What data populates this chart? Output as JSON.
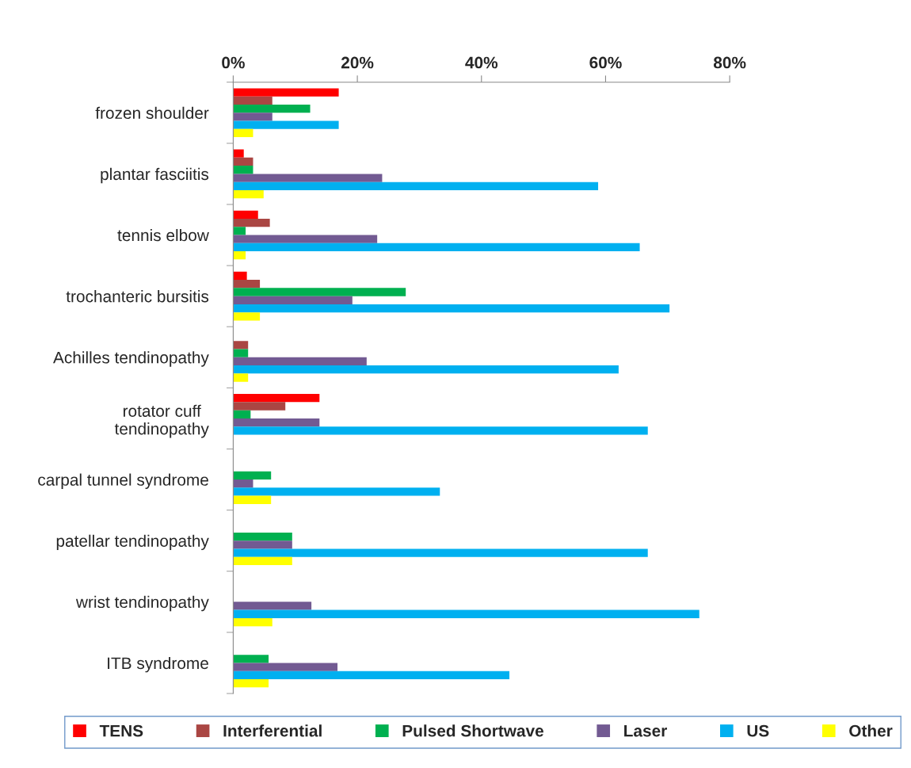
{
  "chart_data": {
    "type": "bar",
    "orientation": "horizontal",
    "categories": [
      "frozen shoulder",
      "plantar fasciitis",
      "tennis elbow",
      "trochanteric bursitis",
      "Achilles tendinopathy",
      "rotator cuff\ntendinopathy",
      "carpal tunnel syndrome",
      "patellar tendinopathy",
      "wrist tendinopathy",
      "ITB syndrome"
    ],
    "series": [
      {
        "name": "TENS",
        "color": "#ff0000",
        "values": [
          17.0,
          1.7,
          4.0,
          2.2,
          0,
          13.9,
          0,
          0,
          0,
          0
        ]
      },
      {
        "name": "Interferential",
        "color": "#aa4643",
        "values": [
          6.3,
          3.2,
          5.9,
          4.3,
          2.4,
          8.4,
          0,
          0,
          0,
          0
        ]
      },
      {
        "name": "Pulsed Shortwave",
        "color": "#00b050",
        "values": [
          12.4,
          3.2,
          2.0,
          27.8,
          2.4,
          2.8,
          6.1,
          9.5,
          0,
          5.7
        ]
      },
      {
        "name": "Laser",
        "color": "#725a92",
        "values": [
          6.3,
          24.0,
          23.2,
          19.2,
          21.5,
          13.9,
          3.2,
          9.5,
          12.6,
          16.8
        ]
      },
      {
        "name": "US",
        "color": "#00b0f0",
        "values": [
          17.0,
          58.8,
          65.5,
          70.3,
          62.1,
          66.8,
          33.3,
          66.8,
          75.1,
          44.5
        ]
      },
      {
        "name": "Other",
        "color": "#ffff00",
        "values": [
          3.2,
          4.9,
          2.0,
          4.3,
          2.4,
          0,
          6.1,
          9.5,
          6.3,
          5.7
        ]
      }
    ],
    "xlim": [
      0,
      80
    ],
    "xticks": [
      {
        "value": 0,
        "label": "0%"
      },
      {
        "value": 20,
        "label": "20%"
      },
      {
        "value": 40,
        "label": "40%"
      },
      {
        "value": 60,
        "label": "60%"
      },
      {
        "value": 80,
        "label": "80%"
      }
    ],
    "grid": false,
    "legend": "bottom"
  }
}
